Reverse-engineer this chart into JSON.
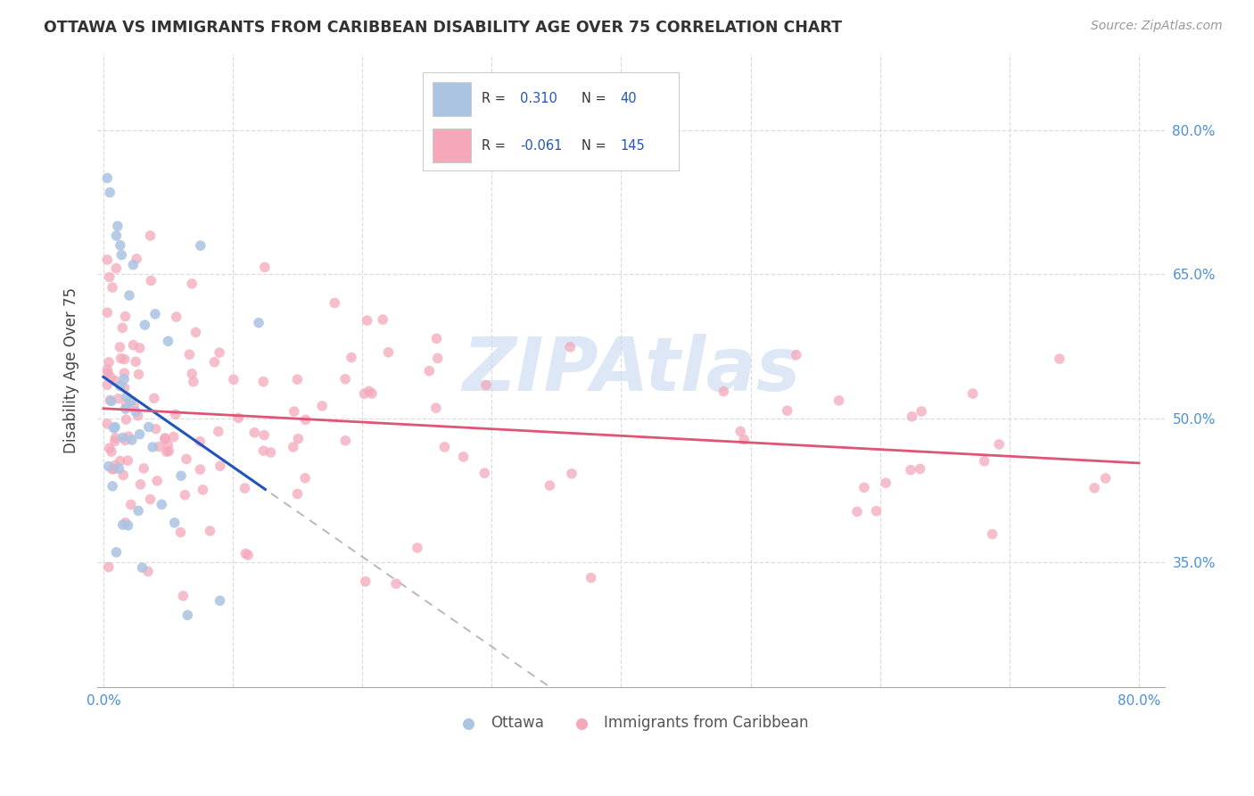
{
  "title": "OTTAWA VS IMMIGRANTS FROM CARIBBEAN DISABILITY AGE OVER 75 CORRELATION CHART",
  "source": "Source: ZipAtlas.com",
  "ylabel": "Disability Age Over 75",
  "xlim": [
    -0.005,
    0.82
  ],
  "ylim": [
    0.22,
    0.88
  ],
  "yticks": [
    0.35,
    0.5,
    0.65,
    0.8
  ],
  "ytick_labels": [
    "35.0%",
    "50.0%",
    "65.0%",
    "80.0%"
  ],
  "xticks": [
    0.0,
    0.1,
    0.2,
    0.3,
    0.4,
    0.5,
    0.6,
    0.7,
    0.8
  ],
  "xtick_labels": [
    "0.0%",
    "",
    "",
    "",
    "",
    "",
    "",
    "",
    "80.0%"
  ],
  "color_ottawa": "#aac4e2",
  "color_caribbean": "#f4a8ba",
  "color_trendline_ottawa": "#2255bb",
  "color_trendline_caribbean": "#e05575",
  "color_trendline_dashed": "#b8b8b8",
  "watermark": "ZIPAtlas",
  "watermark_color": "#c8d8f0",
  "title_color": "#333333",
  "tick_label_color": "#4a90d9",
  "ylabel_color": "#444444",
  "background_color": "#ffffff",
  "legend_text_color": "#333333",
  "legend_value_color": "#2255bb",
  "grid_color": "#dddddd",
  "bottom_legend_color": "#555555"
}
